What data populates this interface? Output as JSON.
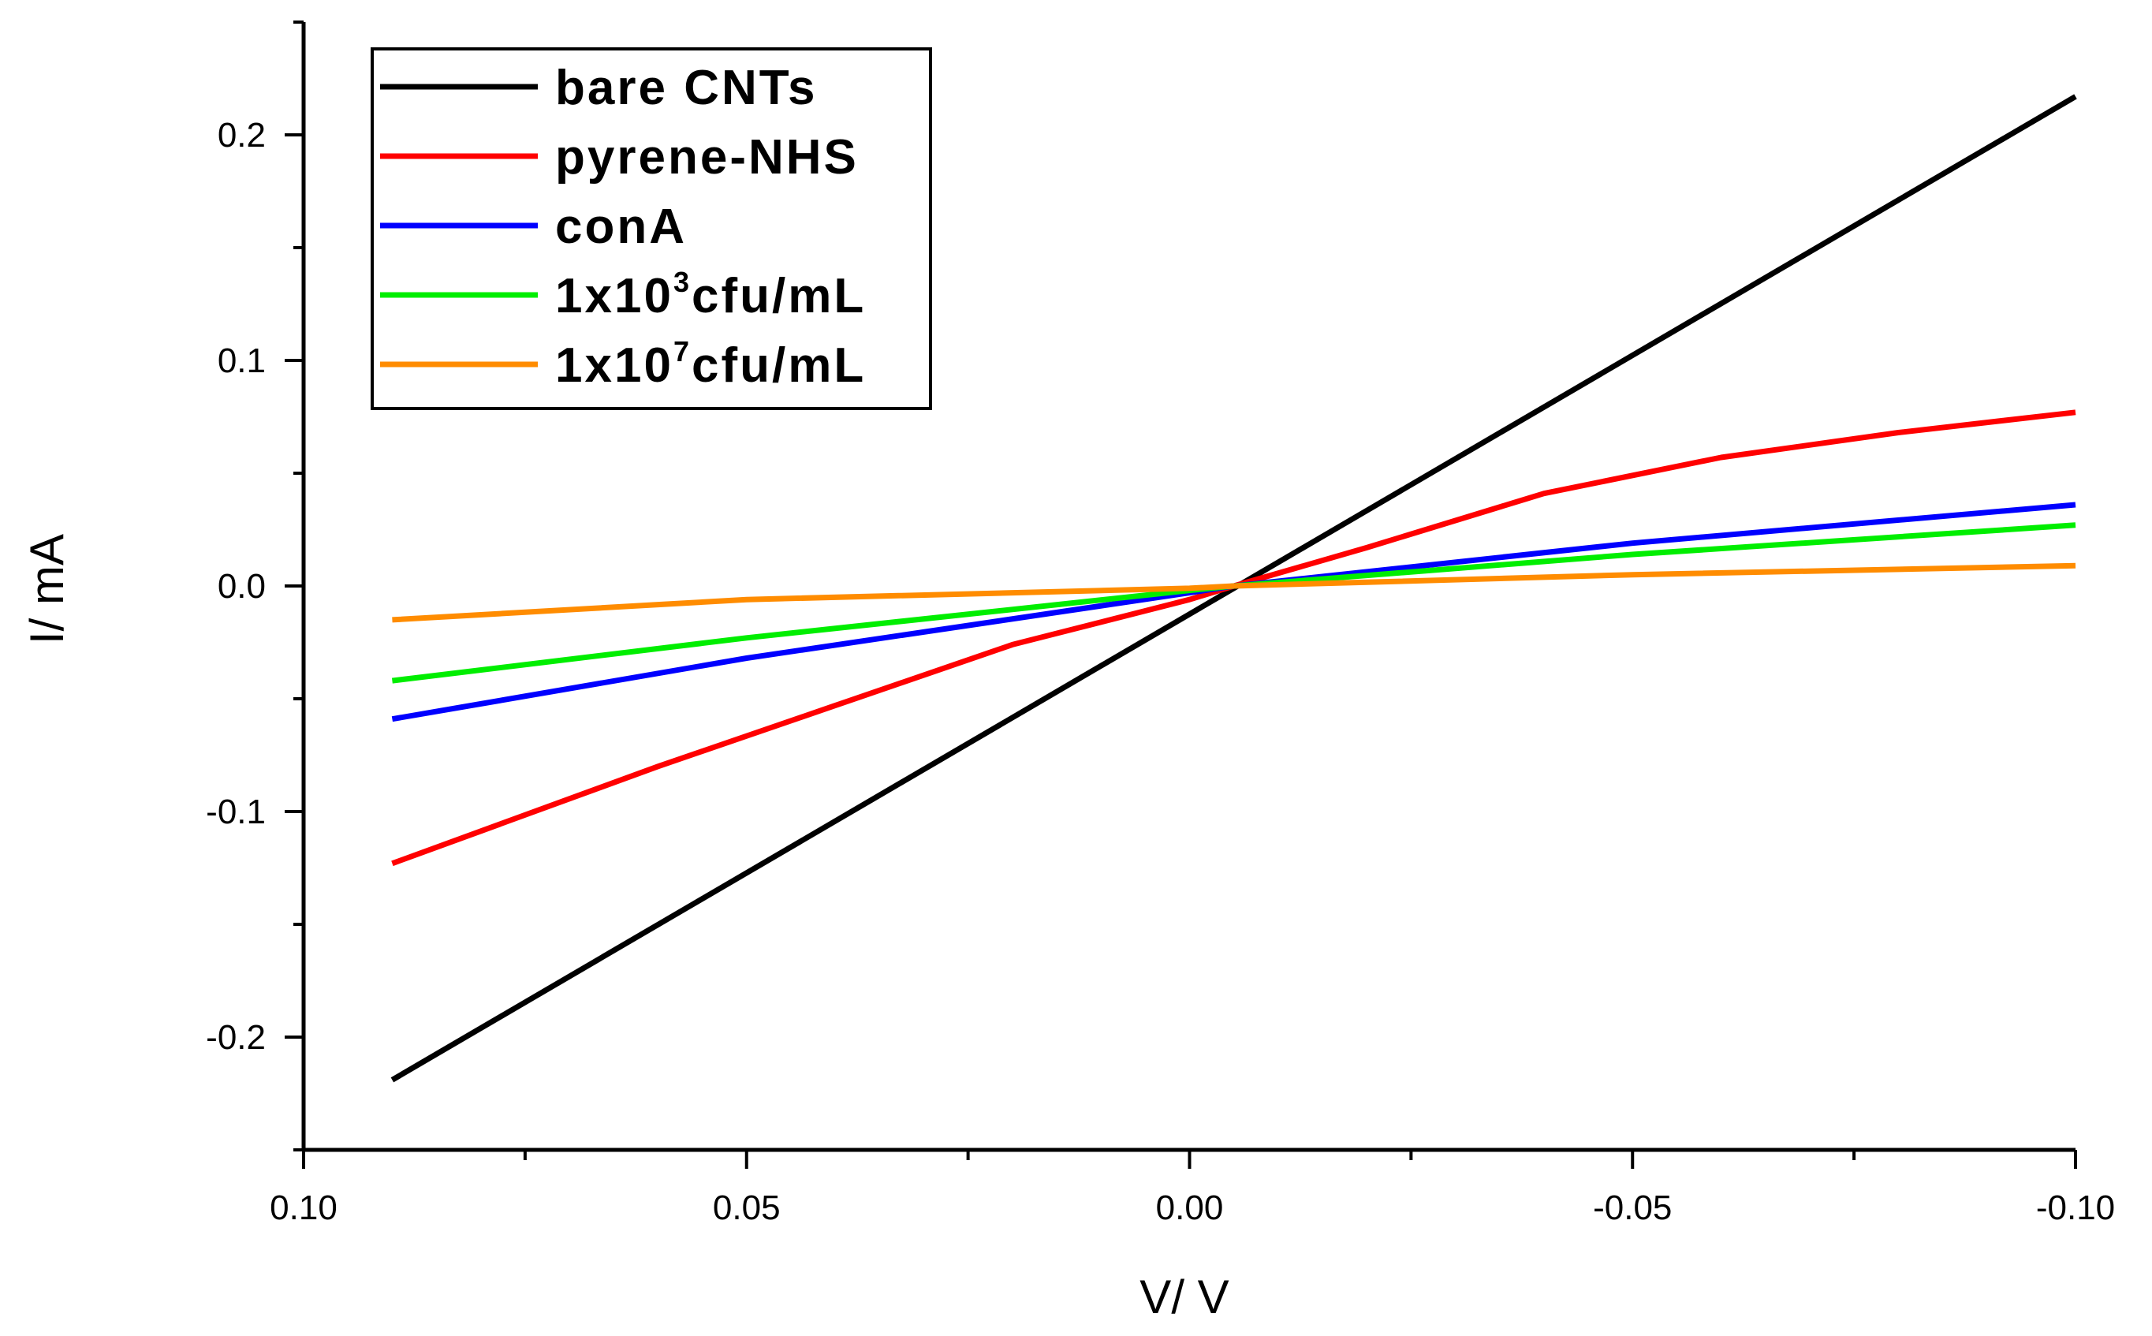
{
  "chart_data": {
    "type": "line",
    "title": "",
    "xlabel": "V/ V",
    "ylabel": "I/ mA",
    "xlim": [
      0.1,
      -0.1
    ],
    "ylim": [
      -0.25,
      0.25
    ],
    "x_axis_reversed": true,
    "x_ticks": [
      "0.10",
      "0.05",
      "0.00",
      "-0.05",
      "-0.10"
    ],
    "y_ticks": [
      "-0.2",
      "-0.1",
      "0.0",
      "0.1",
      "0.2"
    ],
    "grid": false,
    "legend_position": "top-left",
    "series": [
      {
        "name": "bare CNTs",
        "legend": {
          "prefix": "bare CNTs",
          "sup": "",
          "suffix": ""
        },
        "color": "#000000",
        "x": [
          0.09,
          -0.1
        ],
        "y": [
          -0.219,
          0.217
        ]
      },
      {
        "name": "pyrene-NHS",
        "legend": {
          "prefix": "pyrene-NHS",
          "sup": "",
          "suffix": ""
        },
        "color": "#ff0000",
        "x": [
          0.09,
          0.06,
          0.04,
          0.02,
          0.0,
          -0.005,
          -0.02,
          -0.04,
          -0.06,
          -0.08,
          -0.1
        ],
        "y": [
          -0.123,
          -0.08,
          -0.053,
          -0.026,
          -0.006,
          0.0,
          0.017,
          0.041,
          0.057,
          0.068,
          0.077
        ]
      },
      {
        "name": "conA",
        "legend": {
          "prefix": "conA",
          "sup": "",
          "suffix": ""
        },
        "color": "#0000ff",
        "x": [
          0.09,
          0.05,
          0.0,
          -0.005,
          -0.05,
          -0.1
        ],
        "y": [
          -0.059,
          -0.032,
          -0.003,
          0.0,
          0.019,
          0.036
        ]
      },
      {
        "name": "1x10^3cfu/mL",
        "legend": {
          "prefix": "1x10",
          "sup": "3",
          "suffix": "cfu/mL"
        },
        "color": "#00ee00",
        "x": [
          0.09,
          0.05,
          0.0,
          -0.005,
          -0.05,
          -0.1
        ],
        "y": [
          -0.042,
          -0.023,
          -0.002,
          0.0,
          0.014,
          0.027
        ]
      },
      {
        "name": "1x10^7cfu/mL",
        "legend": {
          "prefix": "1x10",
          "sup": "7",
          "suffix": "cfu/mL"
        },
        "color": "#ff8c00",
        "x": [
          0.09,
          0.05,
          0.0,
          -0.005,
          -0.05,
          -0.1
        ],
        "y": [
          -0.015,
          -0.006,
          -0.001,
          0.0,
          0.005,
          0.009
        ]
      }
    ]
  }
}
